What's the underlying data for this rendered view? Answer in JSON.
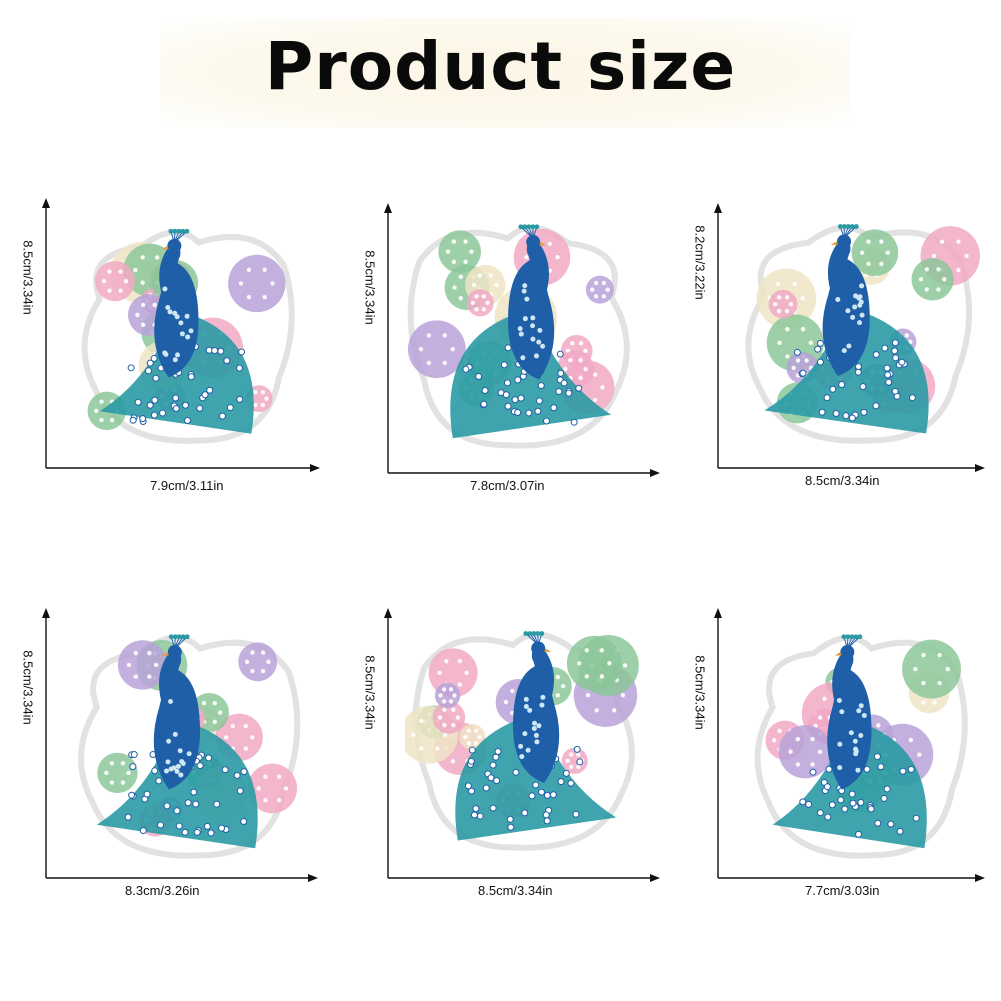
{
  "title": "Product size",
  "colors": {
    "peacock_body": "#1f5fa8",
    "peacock_teal": "#2a9aa4",
    "flower_pink": "#f1a9c4",
    "flower_lavender": "#b9a2d8",
    "leaf_green": "#8cc79a",
    "cream": "#efe4c6",
    "outline": "#e2e2e2"
  },
  "products": [
    {
      "width": "7.9cm/3.11in",
      "height": "8.5cm/3.34in",
      "icon": "peacock-sticker-icon"
    },
    {
      "width": "7.8cm/3.07in",
      "height": "8.5cm/3.34in",
      "icon": "peacock-sticker-icon"
    },
    {
      "width": "8.5cm/3.34in",
      "height": "8.2cm/3.22in",
      "icon": "peacock-sticker-icon"
    },
    {
      "width": "8.3cm/3.26in",
      "height": "8.5cm/3.34in",
      "icon": "peacock-sticker-icon"
    },
    {
      "width": "8.5cm/3.34in",
      "height": "8.5cm/3.34in",
      "icon": "peacock-sticker-icon"
    },
    {
      "width": "7.7cm/3.03in",
      "height": "8.5cm/3.34in",
      "icon": "peacock-sticker-icon"
    }
  ]
}
